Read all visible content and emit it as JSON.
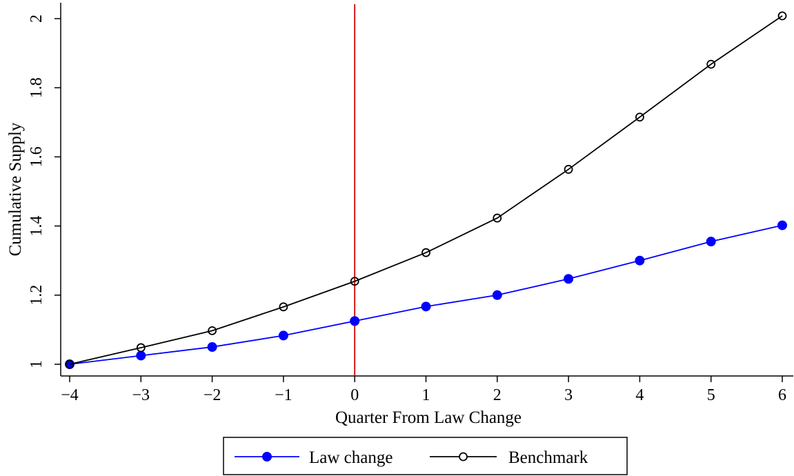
{
  "chart_data": {
    "type": "line",
    "title": "",
    "xlabel": "Quarter From Law Change",
    "ylabel": "Cumulative Supply",
    "x": [
      -4,
      -3,
      -2,
      -1,
      0,
      1,
      2,
      3,
      4,
      5,
      6
    ],
    "xlim": [
      -4,
      6
    ],
    "ylim": [
      1,
      2
    ],
    "x_ticks": [
      "−4",
      "−3",
      "−2",
      "−1",
      "0",
      "1",
      "2",
      "3",
      "4",
      "5",
      "6"
    ],
    "y_ticks": [
      "1",
      "1.2",
      "1.4",
      "1.6",
      "1.8",
      "2"
    ],
    "y_tick_values": [
      1,
      1.2,
      1.4,
      1.6,
      1.8,
      2
    ],
    "grid": false,
    "legend_position": "bottom-center",
    "reference_line": {
      "x": 0,
      "color": "#cc0000"
    },
    "series": [
      {
        "name": "Law change",
        "color": "#0000ff",
        "marker": "filled-circle",
        "values": [
          1.0,
          1.025,
          1.05,
          1.083,
          1.125,
          1.167,
          1.2,
          1.247,
          1.3,
          1.355,
          1.402
        ]
      },
      {
        "name": "Benchmark",
        "color": "#000000",
        "marker": "hollow-circle",
        "values": [
          1.0,
          1.048,
          1.097,
          1.166,
          1.24,
          1.323,
          1.423,
          1.564,
          1.715,
          1.868,
          2.008
        ]
      }
    ]
  }
}
